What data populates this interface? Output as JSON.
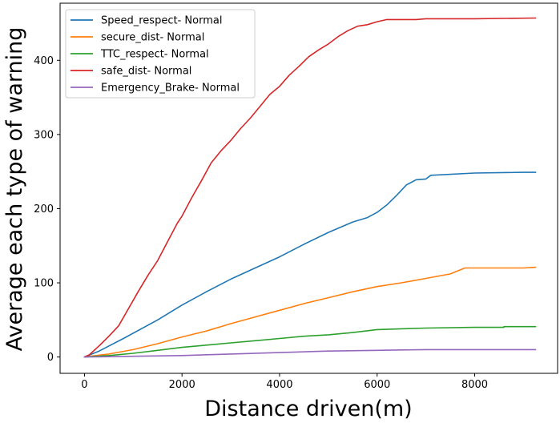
{
  "chart_data": {
    "type": "line",
    "title": "",
    "xlabel": "Distance driven(m)",
    "ylabel": "Average each type of warning",
    "xlim": [
      -500,
      9700
    ],
    "ylim": [
      -22,
      477
    ],
    "xticks": [
      0,
      2000,
      4000,
      6000,
      8000
    ],
    "yticks": [
      0,
      100,
      200,
      300,
      400
    ],
    "grid": false,
    "legend_position": "upper-left",
    "series": [
      {
        "name": "Speed_respect- Normal",
        "color": "#1f77b4",
        "points": [
          [
            0,
            0
          ],
          [
            300,
            8
          ],
          [
            800,
            25
          ],
          [
            1500,
            50
          ],
          [
            2000,
            70
          ],
          [
            2500,
            88
          ],
          [
            3000,
            105
          ],
          [
            3500,
            120
          ],
          [
            4000,
            135
          ],
          [
            4500,
            152
          ],
          [
            5000,
            168
          ],
          [
            5500,
            182
          ],
          [
            5800,
            188
          ],
          [
            6000,
            195
          ],
          [
            6200,
            205
          ],
          [
            6400,
            218
          ],
          [
            6600,
            232
          ],
          [
            6800,
            239
          ],
          [
            7000,
            240
          ],
          [
            7100,
            245
          ],
          [
            8000,
            248
          ],
          [
            9000,
            249
          ],
          [
            9250,
            249
          ]
        ]
      },
      {
        "name": "secure_dist- Normal",
        "color": "#ff7f0e",
        "points": [
          [
            0,
            0
          ],
          [
            500,
            4
          ],
          [
            1000,
            10
          ],
          [
            1500,
            18
          ],
          [
            2000,
            27
          ],
          [
            2500,
            35
          ],
          [
            3000,
            45
          ],
          [
            3500,
            54
          ],
          [
            4000,
            63
          ],
          [
            4500,
            72
          ],
          [
            5000,
            80
          ],
          [
            5500,
            88
          ],
          [
            6000,
            95
          ],
          [
            6500,
            100
          ],
          [
            7000,
            106
          ],
          [
            7500,
            112
          ],
          [
            7800,
            120
          ],
          [
            8500,
            120
          ],
          [
            9000,
            120
          ],
          [
            9250,
            121
          ]
        ]
      },
      {
        "name": "TTC_respect- Normal",
        "color": "#2ca02c",
        "points": [
          [
            0,
            0
          ],
          [
            500,
            2
          ],
          [
            1000,
            5
          ],
          [
            1500,
            9
          ],
          [
            2000,
            13
          ],
          [
            2500,
            16
          ],
          [
            3000,
            19
          ],
          [
            3500,
            22
          ],
          [
            4000,
            25
          ],
          [
            4500,
            28
          ],
          [
            5000,
            30
          ],
          [
            5500,
            33
          ],
          [
            6000,
            37
          ],
          [
            6500,
            38
          ],
          [
            7000,
            39
          ],
          [
            8000,
            40
          ],
          [
            8600,
            40
          ],
          [
            8600,
            41
          ],
          [
            9250,
            41
          ]
        ]
      },
      {
        "name": "safe_dist- Normal",
        "color": "#d62728",
        "points": [
          [
            0,
            0
          ],
          [
            100,
            3
          ],
          [
            300,
            15
          ],
          [
            500,
            28
          ],
          [
            700,
            42
          ],
          [
            900,
            65
          ],
          [
            1100,
            88
          ],
          [
            1300,
            110
          ],
          [
            1500,
            130
          ],
          [
            1700,
            155
          ],
          [
            1900,
            180
          ],
          [
            2000,
            190
          ],
          [
            2200,
            215
          ],
          [
            2400,
            238
          ],
          [
            2600,
            262
          ],
          [
            2800,
            278
          ],
          [
            3000,
            292
          ],
          [
            3200,
            308
          ],
          [
            3400,
            322
          ],
          [
            3600,
            338
          ],
          [
            3800,
            354
          ],
          [
            4000,
            365
          ],
          [
            4200,
            380
          ],
          [
            4400,
            392
          ],
          [
            4600,
            405
          ],
          [
            4800,
            414
          ],
          [
            5000,
            422
          ],
          [
            5200,
            432
          ],
          [
            5400,
            440
          ],
          [
            5600,
            446
          ],
          [
            5800,
            448
          ],
          [
            6000,
            452
          ],
          [
            6200,
            455
          ],
          [
            6800,
            455
          ],
          [
            7000,
            456
          ],
          [
            8000,
            456
          ],
          [
            9250,
            457
          ]
        ]
      },
      {
        "name": "Emergency_Brake- Normal",
        "color": "#9467bd",
        "points": [
          [
            0,
            0
          ],
          [
            1000,
            1
          ],
          [
            2000,
            2
          ],
          [
            3000,
            4
          ],
          [
            4000,
            6
          ],
          [
            5000,
            8
          ],
          [
            6000,
            9
          ],
          [
            7000,
            10
          ],
          [
            8000,
            10
          ],
          [
            9250,
            10
          ]
        ]
      }
    ]
  }
}
